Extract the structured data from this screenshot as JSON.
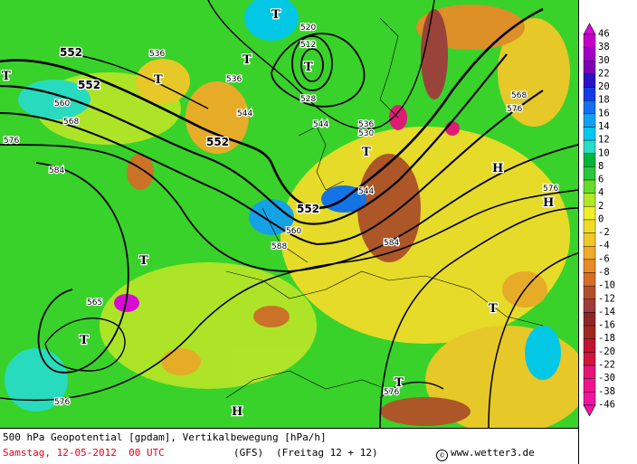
{
  "footer": {
    "title": "500 hPa Geopotential [gpdam], Vertikalbewegung [hPa/h]",
    "date": "Samstag, 12-05-2012  00 UTC",
    "model": "(GFS)",
    "run": "(Freitag 12 + 12)",
    "copyright_symbol": "©",
    "credit": "www.wetter3.de"
  },
  "legend": {
    "labels": [
      "46",
      "38",
      "30",
      "22",
      "20",
      "18",
      "16",
      "14",
      "12",
      "10",
      "8",
      "6",
      "4",
      "2",
      "0",
      "-2",
      "-4",
      "-6",
      "-8",
      "-10",
      "-12",
      "-14",
      "-16",
      "-18",
      "-20",
      "-22",
      "-30",
      "-38",
      "-46"
    ],
    "colors": [
      "#e000e0",
      "#c400c8",
      "#a000c8",
      "#7c00b4",
      "#2814c8",
      "#143ce6",
      "#1470f0",
      "#14a0f0",
      "#00c8f0",
      "#28dcc8",
      "#00b43c",
      "#28c83c",
      "#64dc28",
      "#b4e628",
      "#f0f028",
      "#f0dc28",
      "#f0c828",
      "#f0aa28",
      "#e68c28",
      "#d26e28",
      "#b45028",
      "#a03c3c",
      "#8c2828",
      "#a0281e",
      "#be1432",
      "#d2143c",
      "#e61478",
      "#f0148c",
      "#f014a0"
    ]
  },
  "map": {
    "pressure_labels": [
      {
        "text": "552",
        "bold": true
      },
      {
        "text": "552",
        "bold": true
      },
      {
        "text": "552",
        "bold": true
      },
      {
        "text": "552",
        "bold": true
      },
      {
        "text": "544",
        "bold": false
      },
      {
        "text": "544",
        "bold": false
      },
      {
        "text": "544",
        "bold": false
      },
      {
        "text": "536",
        "bold": false
      },
      {
        "text": "536",
        "bold": false
      },
      {
        "text": "536",
        "bold": false
      },
      {
        "text": "528",
        "bold": false
      },
      {
        "text": "520",
        "bold": false
      },
      {
        "text": "512",
        "bold": false
      },
      {
        "text": "560",
        "bold": false
      },
      {
        "text": "560",
        "bold": false
      },
      {
        "text": "568",
        "bold": false
      },
      {
        "text": "568",
        "bold": false
      },
      {
        "text": "576",
        "bold": false
      },
      {
        "text": "576",
        "bold": false
      },
      {
        "text": "576",
        "bold": false
      },
      {
        "text": "576",
        "bold": false
      },
      {
        "text": "576",
        "bold": false
      },
      {
        "text": "584",
        "bold": false
      },
      {
        "text": "584",
        "bold": false
      },
      {
        "text": "588",
        "bold": false
      },
      {
        "text": "565",
        "bold": false
      },
      {
        "text": "530",
        "bold": false
      }
    ],
    "centers": [
      "T",
      "T",
      "T",
      "T",
      "T",
      "T",
      "T",
      "T",
      "T",
      "T",
      "H",
      "H",
      "H"
    ]
  }
}
